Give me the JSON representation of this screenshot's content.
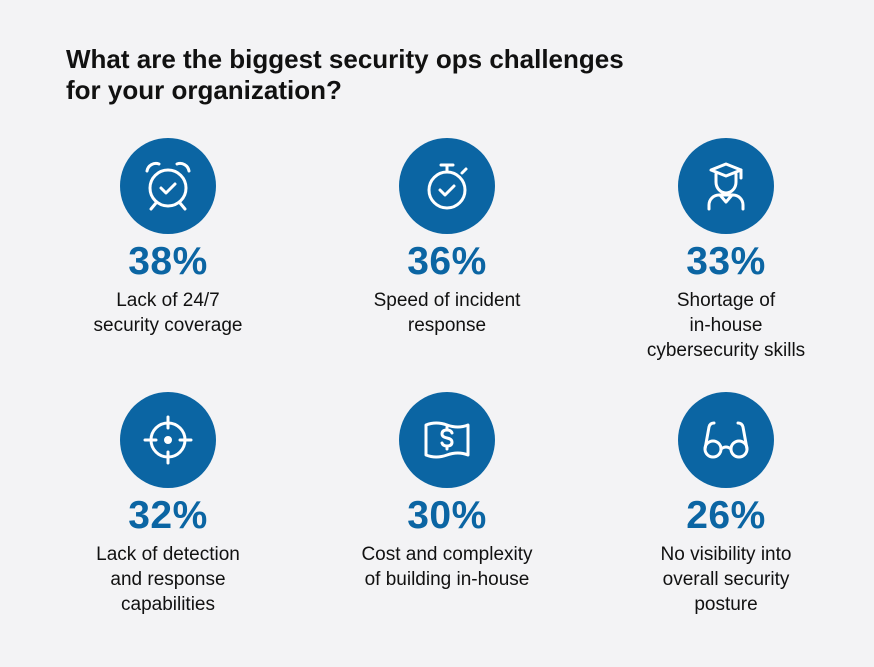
{
  "title": {
    "line1": "What are the biggest security ops challenges",
    "line2": "for your organization?"
  },
  "chart_data": {
    "type": "table",
    "title": "What are the biggest security ops challenges for your organization?",
    "unit": "%",
    "items": [
      {
        "value": 38,
        "display": "38%",
        "label_lines": [
          "Lack of 24/7",
          "security coverage"
        ],
        "icon": "alarm-clock-icon"
      },
      {
        "value": 36,
        "display": "36%",
        "label_lines": [
          "Speed of incident",
          "response"
        ],
        "icon": "stopwatch-icon"
      },
      {
        "value": 33,
        "display": "33%",
        "label_lines": [
          "Shortage of",
          "in-house",
          "cybersecurity skills"
        ],
        "icon": "graduate-icon"
      },
      {
        "value": 32,
        "display": "32%",
        "label_lines": [
          "Lack of detection",
          "and response",
          "capabilities"
        ],
        "icon": "crosshair-icon"
      },
      {
        "value": 30,
        "display": "30%",
        "label_lines": [
          "Cost and complexity",
          "of building in-house"
        ],
        "icon": "dollar-bill-icon"
      },
      {
        "value": 26,
        "display": "26%",
        "label_lines": [
          "No visibility into",
          "overall security",
          "posture"
        ],
        "icon": "glasses-icon"
      }
    ]
  },
  "colors": {
    "accent": "#0b65a3",
    "text": "#111111",
    "background": "#f3f3f5"
  }
}
